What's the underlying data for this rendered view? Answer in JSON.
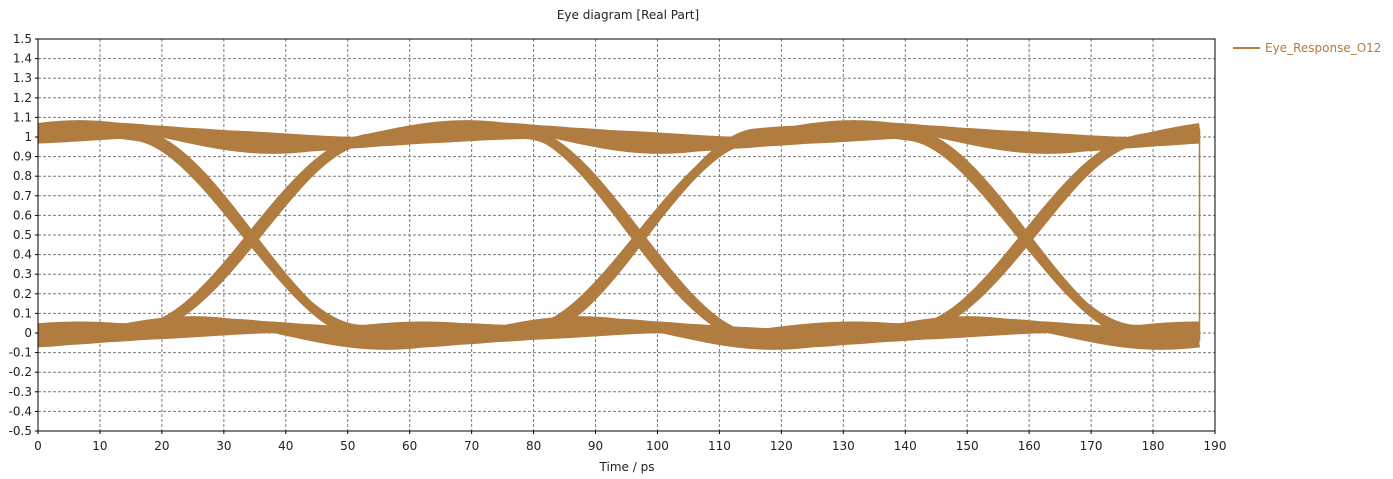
{
  "chart_data": {
    "type": "line",
    "title": "Eye diagram [Real Part]",
    "xlabel": "Time / ps",
    "ylabel": "",
    "xlim": [
      0,
      190
    ],
    "ylim": [
      -0.5,
      1.5
    ],
    "x_ticks": [
      0,
      10,
      20,
      30,
      40,
      50,
      60,
      70,
      80,
      90,
      100,
      110,
      120,
      130,
      140,
      150,
      160,
      170,
      180,
      190
    ],
    "y_ticks": [
      -0.5,
      -0.4,
      -0.3,
      -0.2,
      -0.1,
      0,
      0.1,
      0.2,
      0.3,
      0.4,
      0.5,
      0.6,
      0.7,
      0.8,
      0.9,
      1,
      1.1,
      1.2,
      1.3,
      1.4,
      1.5
    ],
    "y_tick_labels": [
      "-0.5",
      "-0.4",
      "-0.3",
      "-0.2",
      "-0.1",
      "0",
      "0.1",
      "0.2",
      "0.3",
      "0.4",
      "0.5",
      "0.6",
      "0.7",
      "0.8",
      "0.9",
      "1",
      "1.1",
      "1.2",
      "1.3",
      "1.4",
      "1.5"
    ],
    "grid": true,
    "legend_position": "top-right",
    "unit_interval_ps": 62.5,
    "crossing_times_ps": [
      34.5,
      97,
      159.5
    ],
    "trace_end_ps": 187.5,
    "series": [
      {
        "name": "Eye_Response_O12",
        "color": "#b07c40",
        "levels": [
          0,
          1
        ],
        "crossing_level": 0.5
      }
    ]
  }
}
